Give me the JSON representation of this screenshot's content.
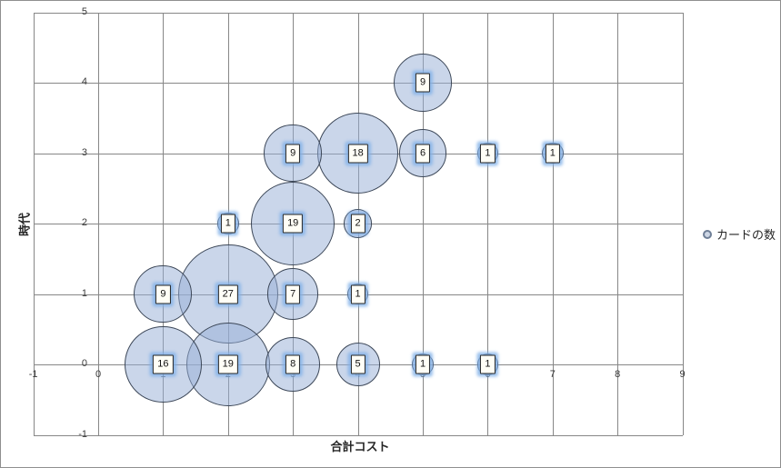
{
  "chart_data": {
    "type": "bubble",
    "title": "",
    "xlabel": "合計コスト",
    "ylabel": "時代",
    "xlim": [
      -1,
      9
    ],
    "ylim": [
      -1,
      5
    ],
    "x_ticks": [
      -1,
      0,
      1,
      2,
      3,
      4,
      5,
      6,
      7,
      8,
      9
    ],
    "y_ticks": [
      -1,
      0,
      1,
      2,
      3,
      4,
      5
    ],
    "grid": true,
    "legend": {
      "label": "カードの数",
      "position": "right"
    },
    "series": [
      {
        "name": "カードの数",
        "points": [
          {
            "x": 1,
            "y": 0,
            "size": 16
          },
          {
            "x": 2,
            "y": 0,
            "size": 19
          },
          {
            "x": 3,
            "y": 0,
            "size": 8
          },
          {
            "x": 4,
            "y": 0,
            "size": 5
          },
          {
            "x": 5,
            "y": 0,
            "size": 1
          },
          {
            "x": 6,
            "y": 0,
            "size": 1
          },
          {
            "x": 1,
            "y": 1,
            "size": 9
          },
          {
            "x": 2,
            "y": 1,
            "size": 27
          },
          {
            "x": 3,
            "y": 1,
            "size": 7
          },
          {
            "x": 4,
            "y": 1,
            "size": 1
          },
          {
            "x": 2,
            "y": 2,
            "size": 1
          },
          {
            "x": 3,
            "y": 2,
            "size": 19
          },
          {
            "x": 4,
            "y": 2,
            "size": 2
          },
          {
            "x": 3,
            "y": 3,
            "size": 9
          },
          {
            "x": 4,
            "y": 3,
            "size": 18
          },
          {
            "x": 5,
            "y": 3,
            "size": 6
          },
          {
            "x": 6,
            "y": 3,
            "size": 1
          },
          {
            "x": 7,
            "y": 3,
            "size": 1
          },
          {
            "x": 5,
            "y": 4,
            "size": 9
          }
        ]
      }
    ]
  },
  "colors": {
    "bubble_fill": "rgba(150,174,213,0.5)",
    "bubble_border": "#3c4758",
    "gridline": "#878787",
    "label_box_bg": "#fffef6",
    "label_box_border": "#262626",
    "label_glow": "rgba(130,178,232,0.8)",
    "tick_text": "#3b3b3b",
    "legend_marker_fill": "#ccd5e4",
    "legend_marker_border": "#6e7e96"
  }
}
